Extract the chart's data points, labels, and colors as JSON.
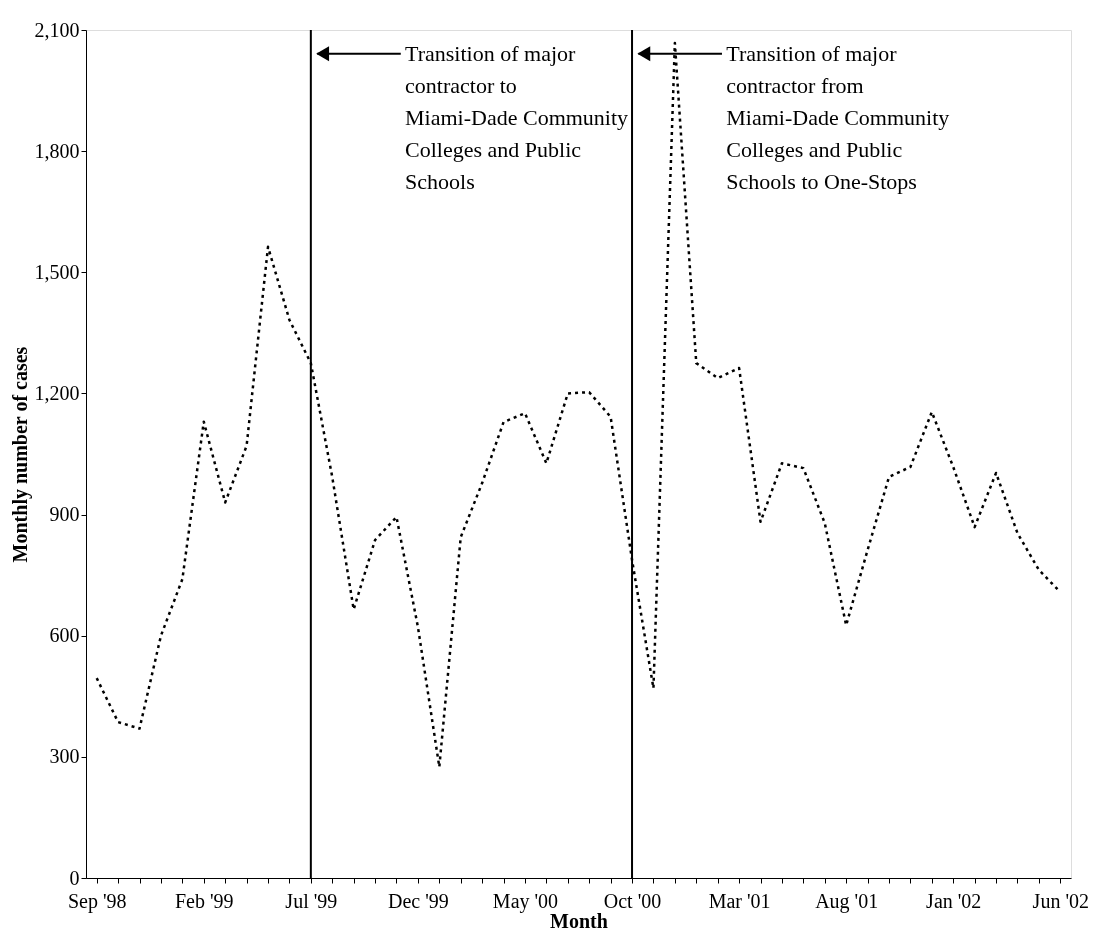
{
  "chart_data": {
    "type": "line",
    "xlabel": "Month",
    "ylabel": "Monthly number of cases",
    "categories": [
      "Sep '98",
      null,
      null,
      null,
      null,
      "Feb '99",
      null,
      null,
      null,
      null,
      "Jul '99",
      null,
      null,
      null,
      null,
      "Dec '99",
      null,
      null,
      null,
      null,
      "May '00",
      null,
      null,
      null,
      null,
      "Oct '00",
      null,
      null,
      null,
      null,
      "Mar '01",
      null,
      null,
      null,
      null,
      "Aug '01",
      null,
      null,
      null,
      null,
      "Jan '02",
      null,
      null,
      null,
      null,
      "Jun '02"
    ],
    "series": [
      {
        "color": "#000000",
        "values": [
          495,
          386,
          370,
          600,
          740,
          1130,
          930,
          1070,
          1563,
          1382,
          1275,
          993,
          665,
          837,
          894,
          622,
          275,
          844,
          978,
          1129,
          1151,
          1027,
          1200,
          1203,
          1142,
          788,
          470,
          2068,
          1275,
          1238,
          1263,
          882,
          1027,
          1015,
          879,
          626,
          812,
          993,
          1018,
          1154,
          1018,
          869,
          1003,
          854,
          763,
          708
        ]
      }
    ],
    "ylim": [
      0,
      2100
    ],
    "yticks": [
      0,
      300,
      600,
      900,
      {
        "value": 1200,
        "label": "1,200"
      },
      {
        "value": 1500,
        "label": "1,500"
      },
      {
        "value": 1800,
        "label": "1,800"
      },
      {
        "value": 2100,
        "label": "2,100"
      }
    ],
    "ref_lines": [
      {
        "axis": "x",
        "value": "Jul '99",
        "label": "Transition of major contractor to Miami-Dade Community Colleges and Public Schools",
        "color": "#000000"
      },
      {
        "axis": "x",
        "value": "Oct '00",
        "label": "Transition of major contractor from Miami-Dade Community Colleges and Public Schools to One-Stops",
        "color": "#000000"
      }
    ],
    "line_style": "dotted",
    "marker": "none",
    "grid": false
  }
}
